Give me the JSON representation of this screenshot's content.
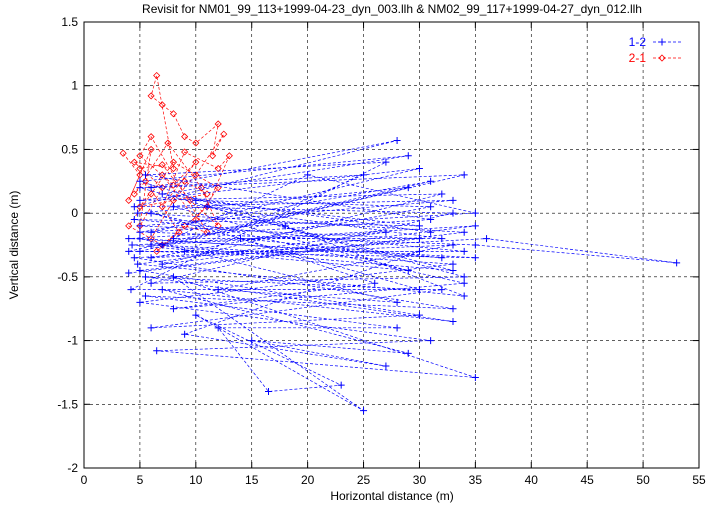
{
  "chart_data": {
    "type": "line",
    "title": "Revisit for NM01_99_113+1999-04-23_dyn_003.llh & NM02_99_117+1999-04-27_dyn_012.llh",
    "xlabel": "Horizontal distance (m)",
    "ylabel": "Vertical distance (m)",
    "xlim": [
      0,
      55
    ],
    "ylim": [
      -2,
      1.5
    ],
    "xticks": [
      "0",
      "5",
      "10",
      "15",
      "20",
      "25",
      "30",
      "35",
      "40",
      "45",
      "50",
      "55"
    ],
    "yticks": [
      "-2",
      "-1.5",
      "-1",
      "-0.5",
      "0",
      "0.5",
      "1",
      "1.5"
    ],
    "grid": true,
    "legend_position": "top-right",
    "colors": {
      "s12": "#0000ff",
      "s21": "#ff0000"
    },
    "series": [
      {
        "name": "1-2",
        "marker": "plus",
        "points": [
          [
            4,
            -0.47
          ],
          [
            30,
            -0.2
          ],
          [
            5,
            -0.1
          ],
          [
            33,
            0.1
          ],
          [
            4.5,
            0.05
          ],
          [
            28,
            0.57
          ],
          [
            6,
            0.2
          ],
          [
            34,
            0.3
          ],
          [
            5,
            -0.3
          ],
          [
            35,
            -0.35
          ],
          [
            4,
            -0.2
          ],
          [
            31,
            -0.05
          ],
          [
            5.5,
            0.3
          ],
          [
            27,
            0.4
          ],
          [
            4.2,
            -0.6
          ],
          [
            32,
            -0.6
          ],
          [
            6,
            -0.9
          ],
          [
            30,
            -0.8
          ],
          [
            5,
            -0.45
          ],
          [
            34,
            -0.15
          ],
          [
            4.8,
            0.0
          ],
          [
            29,
            0.2
          ],
          [
            7,
            -0.25
          ],
          [
            33,
            -0.4
          ],
          [
            5,
            -0.7
          ],
          [
            31,
            -1.0
          ],
          [
            6.5,
            -1.08
          ],
          [
            35,
            -1.29
          ],
          [
            8,
            -0.5
          ],
          [
            25,
            -1.55
          ],
          [
            10,
            -0.8
          ],
          [
            23,
            -1.35
          ],
          [
            16.5,
            -1.4
          ],
          [
            12,
            -0.9
          ],
          [
            28,
            -0.9
          ],
          [
            5.5,
            -0.65
          ],
          [
            33,
            -0.75
          ],
          [
            4.5,
            -0.35
          ],
          [
            36,
            -0.2
          ],
          [
            53,
            -0.39
          ],
          [
            35,
            -0.25
          ],
          [
            6,
            -0.15
          ],
          [
            30,
            0.35
          ],
          [
            5,
            0.1
          ],
          [
            32,
            0.15
          ],
          [
            7,
            -0.4
          ],
          [
            35,
            -0.1
          ],
          [
            4.3,
            -0.25
          ],
          [
            29,
            -0.45
          ],
          [
            8,
            0.05
          ],
          [
            33,
            0.0
          ],
          [
            6,
            -0.55
          ],
          [
            34,
            -0.5
          ],
          [
            5,
            0.2
          ],
          [
            25,
            0.3
          ],
          [
            9,
            -0.3
          ],
          [
            34,
            -0.3
          ],
          [
            4.5,
            -0.05
          ],
          [
            30,
            -0.1
          ],
          [
            10,
            0.1
          ],
          [
            31,
            0.05
          ],
          [
            6,
            -0.35
          ],
          [
            33,
            -0.25
          ],
          [
            12,
            -0.6
          ],
          [
            28,
            -0.7
          ],
          [
            5,
            -0.2
          ],
          [
            32,
            -0.35
          ],
          [
            14,
            -0.2
          ],
          [
            26,
            -0.55
          ],
          [
            8,
            -0.75
          ],
          [
            34,
            -0.55
          ],
          [
            6,
            0.0
          ],
          [
            30,
            -0.6
          ],
          [
            5.5,
            -0.5
          ],
          [
            33,
            -0.85
          ],
          [
            7,
            -0.6
          ],
          [
            29,
            -1.1
          ],
          [
            15,
            -1.0
          ],
          [
            27,
            -1.2
          ],
          [
            9,
            -0.95
          ],
          [
            30,
            -0.3
          ],
          [
            4,
            -0.3
          ],
          [
            31,
            0.25
          ],
          [
            5,
            -0.15
          ],
          [
            35,
            0.0
          ],
          [
            20,
            0.3
          ],
          [
            8,
            -0.2
          ],
          [
            32,
            -0.2
          ],
          [
            11,
            0.05
          ],
          [
            33,
            -0.45
          ],
          [
            6,
            -0.25
          ],
          [
            27,
            -0.15
          ],
          [
            4.8,
            -0.4
          ],
          [
            34,
            -0.65
          ],
          [
            18,
            -0.1
          ],
          [
            5,
            0.25
          ],
          [
            29,
            0.45
          ],
          [
            7,
            0.15
          ],
          [
            31,
            -0.15
          ]
        ]
      },
      {
        "name": "2-1",
        "marker": "diamond",
        "points": [
          [
            3.5,
            0.47
          ],
          [
            5,
            0.3
          ],
          [
            4,
            0.1
          ],
          [
            6,
            0.5
          ],
          [
            5,
            -0.1
          ],
          [
            7,
            0.2
          ],
          [
            4.5,
            0.4
          ],
          [
            8,
            0.35
          ],
          [
            6.5,
            1.08
          ],
          [
            6,
            0.92
          ],
          [
            7,
            0.85
          ],
          [
            8,
            0.78
          ],
          [
            9,
            0.6
          ],
          [
            10,
            0.55
          ],
          [
            12,
            0.7
          ],
          [
            11.5,
            0.45
          ],
          [
            12.5,
            0.62
          ],
          [
            10,
            0.3
          ],
          [
            8,
            0.1
          ],
          [
            6,
            -0.2
          ],
          [
            9,
            0.25
          ],
          [
            11,
            0.15
          ],
          [
            5,
            0.05
          ],
          [
            7,
            0.3
          ],
          [
            10,
            -0.05
          ],
          [
            12,
            0.2
          ],
          [
            8,
            0.4
          ],
          [
            6,
            0.15
          ],
          [
            4,
            -0.1
          ],
          [
            7,
            -0.25
          ],
          [
            9,
            -0.1
          ],
          [
            11,
            -0.15
          ],
          [
            6,
            0.6
          ],
          [
            5,
            0.45
          ],
          [
            8,
            0.22
          ],
          [
            10,
            0.4
          ],
          [
            7,
            0.05
          ],
          [
            9,
            0.48
          ],
          [
            12,
            0.35
          ],
          [
            13,
            0.45
          ],
          [
            11,
            0.05
          ],
          [
            6.5,
            -0.3
          ],
          [
            8.5,
            -0.15
          ],
          [
            5.5,
            0.25
          ],
          [
            4.5,
            0.15
          ],
          [
            7.5,
            0.55
          ],
          [
            10.5,
            0.2
          ],
          [
            12,
            -0.1
          ],
          [
            9.5,
            0.1
          ],
          [
            7,
            0.38
          ],
          [
            5,
            0.35
          ]
        ]
      }
    ]
  }
}
